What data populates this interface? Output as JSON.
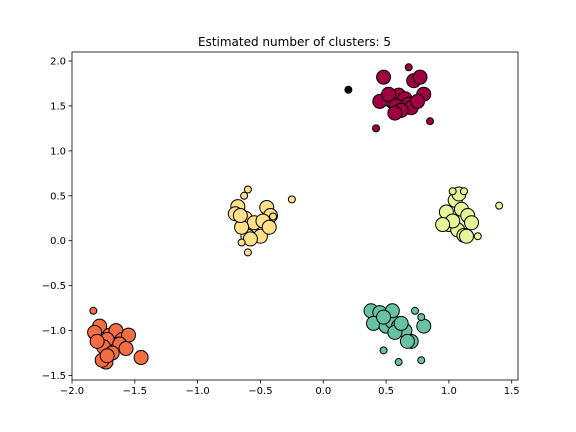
{
  "chart_data": {
    "type": "scatter",
    "title": "Estimated number of clusters: 5",
    "xlabel": "",
    "ylabel": "",
    "xlim": [
      -2.0,
      1.55
    ],
    "ylim": [
      -1.55,
      2.1
    ],
    "xticks": [
      -2.0,
      -1.5,
      -1.0,
      -0.5,
      0.0,
      0.5,
      1.0,
      1.5
    ],
    "xtick_labels": [
      "−2.0",
      "−1.5",
      "−1.0",
      "−0.5",
      "0.0",
      "0.5",
      "1.0",
      "1.5"
    ],
    "yticks": [
      -1.5,
      -1.0,
      -0.5,
      0.0,
      0.5,
      1.0,
      1.5,
      2.0
    ],
    "ytick_labels": [
      "−1.5",
      "−1.0",
      "−0.5",
      "0.0",
      "0.5",
      "1.0",
      "1.5",
      "2.0"
    ],
    "grid": false,
    "marker_edge_color": "#000000",
    "series": [
      {
        "color": "#9e0142",
        "core": [
          [
            0.48,
            1.82
          ],
          [
            0.72,
            1.78
          ],
          [
            0.77,
            1.82
          ],
          [
            0.5,
            1.58
          ],
          [
            0.55,
            1.55
          ],
          [
            0.6,
            1.62
          ],
          [
            0.65,
            1.58
          ],
          [
            0.58,
            1.5
          ],
          [
            0.68,
            1.52
          ],
          [
            0.45,
            1.55
          ],
          [
            0.52,
            1.63
          ],
          [
            0.7,
            1.48
          ],
          [
            0.62,
            1.45
          ],
          [
            0.8,
            1.63
          ],
          [
            0.57,
            1.42
          ],
          [
            0.75,
            1.55
          ]
        ],
        "border": [
          [
            0.68,
            1.93
          ],
          [
            0.85,
            1.33
          ],
          [
            0.42,
            1.25
          ]
        ]
      },
      {
        "color": "#fee08b",
        "core": [
          [
            -0.68,
            0.38
          ],
          [
            -0.62,
            0.25
          ],
          [
            -0.55,
            0.2
          ],
          [
            -0.6,
            0.05
          ],
          [
            -0.5,
            0.05
          ],
          [
            -0.7,
            0.3
          ],
          [
            -0.45,
            0.37
          ],
          [
            -0.42,
            0.28
          ],
          [
            -0.48,
            0.22
          ],
          [
            -0.65,
            0.15
          ],
          [
            -0.58,
            0.02
          ],
          [
            -0.43,
            0.15
          ],
          [
            -0.66,
            0.28
          ]
        ],
        "border": [
          [
            -0.6,
            0.57
          ],
          [
            -0.63,
            0.5
          ],
          [
            -0.4,
            0.27
          ],
          [
            -0.25,
            0.46
          ],
          [
            -0.6,
            -0.13
          ],
          [
            -0.65,
            -0.02
          ]
        ]
      },
      {
        "color": "#e6f598",
        "core": [
          [
            0.98,
            0.32
          ],
          [
            1.05,
            0.45
          ],
          [
            1.1,
            0.35
          ],
          [
            1.15,
            0.28
          ],
          [
            1.0,
            0.18
          ],
          [
            1.07,
            0.12
          ],
          [
            1.12,
            0.06
          ],
          [
            1.03,
            0.22
          ],
          [
            1.18,
            0.2
          ],
          [
            0.95,
            0.18
          ],
          [
            1.08,
            0.52
          ],
          [
            1.14,
            0.05
          ]
        ],
        "border": [
          [
            1.03,
            0.55
          ],
          [
            1.12,
            0.55
          ],
          [
            1.23,
            0.05
          ],
          [
            1.4,
            0.39
          ]
        ]
      },
      {
        "color": "#66c2a5",
        "core": [
          [
            0.38,
            -0.78
          ],
          [
            0.45,
            -0.8
          ],
          [
            0.4,
            -0.92
          ],
          [
            0.5,
            -0.95
          ],
          [
            0.55,
            -0.9
          ],
          [
            0.6,
            -0.95
          ],
          [
            0.65,
            -1.0
          ],
          [
            0.57,
            -1.02
          ],
          [
            0.55,
            -0.78
          ],
          [
            0.48,
            -0.85
          ],
          [
            0.62,
            -0.92
          ],
          [
            0.7,
            -1.12
          ],
          [
            0.67,
            -1.12
          ],
          [
            0.8,
            -0.95
          ]
        ],
        "border": [
          [
            0.73,
            -0.78
          ],
          [
            0.78,
            -0.85
          ],
          [
            0.48,
            -1.22
          ],
          [
            0.6,
            -1.35
          ],
          [
            0.78,
            -1.33
          ]
        ]
      },
      {
        "color": "#f46d43",
        "core": [
          [
            -1.78,
            -0.95
          ],
          [
            -1.82,
            -1.02
          ],
          [
            -1.7,
            -1.05
          ],
          [
            -1.65,
            -1.0
          ],
          [
            -1.72,
            -1.1
          ],
          [
            -1.6,
            -1.1
          ],
          [
            -1.55,
            -1.05
          ],
          [
            -1.62,
            -1.15
          ],
          [
            -1.75,
            -1.18
          ],
          [
            -1.68,
            -1.25
          ],
          [
            -1.57,
            -1.2
          ],
          [
            -1.8,
            -1.12
          ],
          [
            -1.73,
            -1.35
          ],
          [
            -1.76,
            -1.33
          ],
          [
            -1.45,
            -1.3
          ],
          [
            -1.72,
            -1.28
          ]
        ],
        "border": [
          [
            -1.83,
            -0.78
          ]
        ]
      }
    ],
    "noise": {
      "color": "#000000",
      "points": [
        [
          0.2,
          1.68
        ]
      ]
    }
  }
}
